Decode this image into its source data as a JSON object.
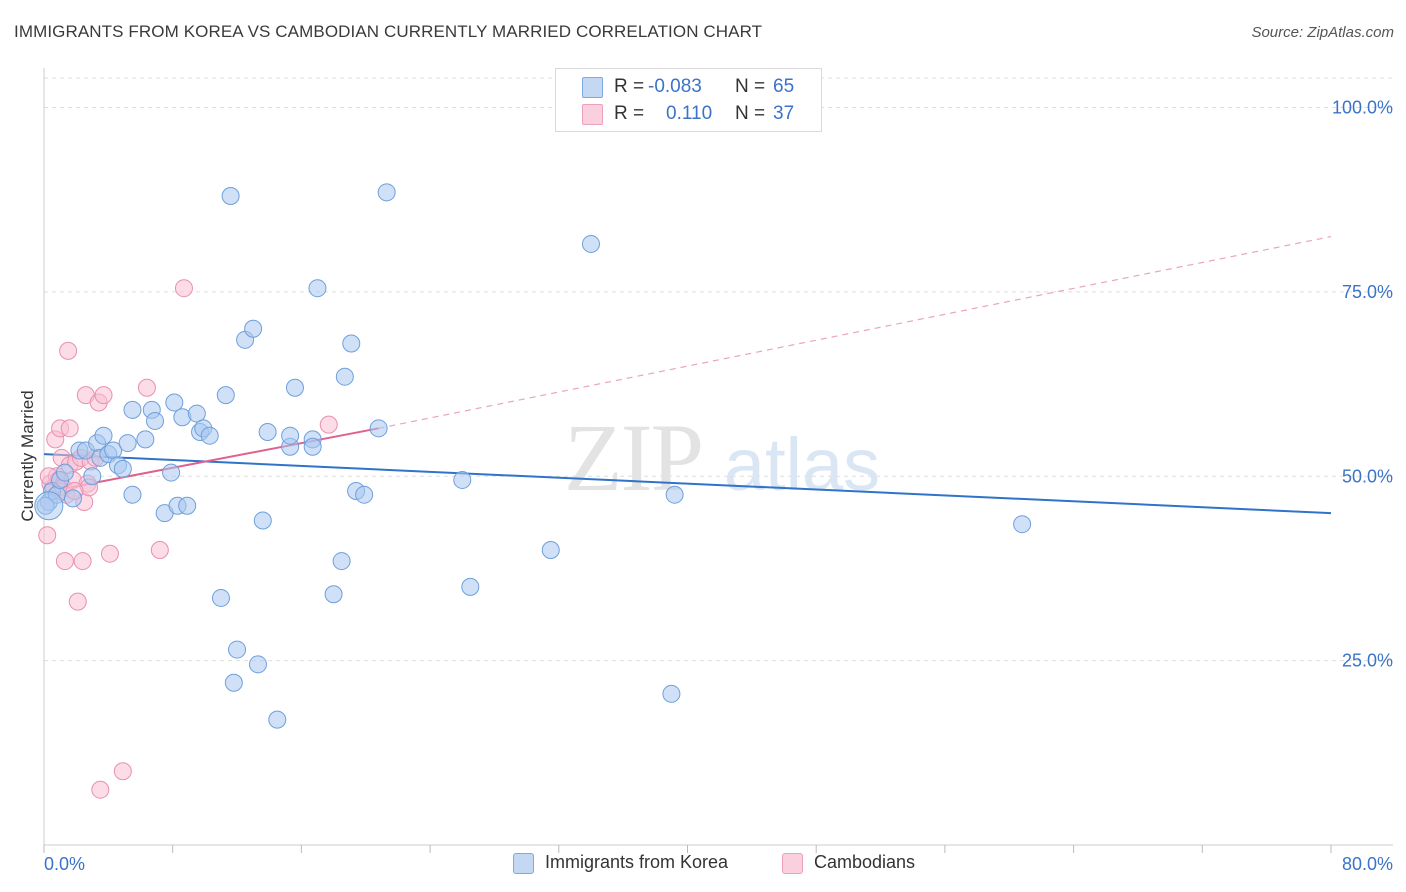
{
  "chart_data": {
    "type": "scatter",
    "title": "IMMIGRANTS FROM KOREA VS CAMBODIAN CURRENTLY MARRIED CORRELATION CHART",
    "source": "Source: ZipAtlas.com",
    "xlabel": "",
    "ylabel": "Currently Married",
    "xlim": [
      0,
      80
    ],
    "ylim": [
      0,
      104
    ],
    "x_tick_labels": {
      "min": "0.0%",
      "max": "80.0%"
    },
    "y_ticks": [
      {
        "value": 100,
        "label": "100.0%"
      },
      {
        "value": 75,
        "label": "75.0%"
      },
      {
        "value": 50,
        "label": "50.0%"
      },
      {
        "value": 25,
        "label": "25.0%"
      }
    ],
    "watermark": {
      "zip": "ZIP",
      "atlas": "atlas"
    },
    "legend_stats": [
      {
        "r_label": "R =",
        "r_value": "-0.083",
        "n_label": "N =",
        "n_value": "65"
      },
      {
        "r_label": "R =",
        "r_value": "0.110",
        "n_label": "N =",
        "n_value": "37"
      }
    ],
    "series": [
      {
        "name": "Immigrants from Korea",
        "color": "#aac8f0",
        "stroke": "#6e9fdc",
        "trend_color": "#2f74c8",
        "trend": {
          "x0": 0,
          "y0": 53.0,
          "x1": 80,
          "y1": 45.0
        },
        "points": [
          [
            0.3,
            46.5
          ],
          [
            0.5,
            48.0
          ],
          [
            0.8,
            47.5
          ],
          [
            1.0,
            49.5
          ],
          [
            1.3,
            50.5
          ],
          [
            1.8,
            47.0
          ],
          [
            2.2,
            53.5
          ],
          [
            2.6,
            53.5
          ],
          [
            3.0,
            50.0
          ],
          [
            3.3,
            54.5
          ],
          [
            3.5,
            52.5
          ],
          [
            3.7,
            55.5
          ],
          [
            4.0,
            53.0
          ],
          [
            4.3,
            53.5
          ],
          [
            4.6,
            51.5
          ],
          [
            4.9,
            51.0
          ],
          [
            5.2,
            54.5
          ],
          [
            5.5,
            47.5
          ],
          [
            5.5,
            59.0
          ],
          [
            6.3,
            55.0
          ],
          [
            6.7,
            59.0
          ],
          [
            6.9,
            57.5
          ],
          [
            7.5,
            45.0
          ],
          [
            7.9,
            50.5
          ],
          [
            8.1,
            60.0
          ],
          [
            8.3,
            46.0
          ],
          [
            8.6,
            58.0
          ],
          [
            8.9,
            46.0
          ],
          [
            9.5,
            58.5
          ],
          [
            9.7,
            56.0
          ],
          [
            9.9,
            56.5
          ],
          [
            10.3,
            55.5
          ],
          [
            11.0,
            33.5
          ],
          [
            11.3,
            61.0
          ],
          [
            11.6,
            88.0
          ],
          [
            11.8,
            22.0
          ],
          [
            12.0,
            26.5
          ],
          [
            12.5,
            68.5
          ],
          [
            13.0,
            70.0
          ],
          [
            13.3,
            24.5
          ],
          [
            13.6,
            44.0
          ],
          [
            13.9,
            56.0
          ],
          [
            14.5,
            17.0
          ],
          [
            15.3,
            54.0
          ],
          [
            15.3,
            55.5
          ],
          [
            15.6,
            62.0
          ],
          [
            16.7,
            55.0
          ],
          [
            16.7,
            54.0
          ],
          [
            17.0,
            75.5
          ],
          [
            18.0,
            34.0
          ],
          [
            18.5,
            38.5
          ],
          [
            18.7,
            63.5
          ],
          [
            19.1,
            68.0
          ],
          [
            19.4,
            48.0
          ],
          [
            19.9,
            47.5
          ],
          [
            20.8,
            56.5
          ],
          [
            21.3,
            88.5
          ],
          [
            26.0,
            49.5
          ],
          [
            26.5,
            35.0
          ],
          [
            31.5,
            40.0
          ],
          [
            34.0,
            81.5
          ],
          [
            39.0,
            20.5
          ],
          [
            39.2,
            47.5
          ],
          [
            60.8,
            43.5
          ],
          [
            0.1,
            46.0
          ]
        ]
      },
      {
        "name": "Cambodians",
        "color": "#f7bfd3",
        "stroke": "#e890b0",
        "trend_color": "#e0608e",
        "trend": {
          "x0": 0,
          "y0": 47.8,
          "x1": 20.8,
          "y1": 56.5
        },
        "trend_dashed": {
          "x0": 20.8,
          "y0": 56.5,
          "x1": 80,
          "y1": 82.5
        },
        "points": [
          [
            0.2,
            42.0
          ],
          [
            0.4,
            49.0
          ],
          [
            0.6,
            48.5
          ],
          [
            0.7,
            55.0
          ],
          [
            0.8,
            50.0
          ],
          [
            0.9,
            49.5
          ],
          [
            1.0,
            48.0
          ],
          [
            1.0,
            56.5
          ],
          [
            1.1,
            52.5
          ],
          [
            1.2,
            48.5
          ],
          [
            1.3,
            38.5
          ],
          [
            1.4,
            47.5
          ],
          [
            1.5,
            67.0
          ],
          [
            1.6,
            51.5
          ],
          [
            1.6,
            56.5
          ],
          [
            1.8,
            49.5
          ],
          [
            2.0,
            52.0
          ],
          [
            2.1,
            33.0
          ],
          [
            2.3,
            52.5
          ],
          [
            2.4,
            38.5
          ],
          [
            2.5,
            46.5
          ],
          [
            2.6,
            61.0
          ],
          [
            2.7,
            49.0
          ],
          [
            2.8,
            48.5
          ],
          [
            2.9,
            52.0
          ],
          [
            3.2,
            52.5
          ],
          [
            3.4,
            60.0
          ],
          [
            3.5,
            7.5
          ],
          [
            3.7,
            61.0
          ],
          [
            4.1,
            39.5
          ],
          [
            4.9,
            10.0
          ],
          [
            6.4,
            62.0
          ],
          [
            7.2,
            40.0
          ],
          [
            8.7,
            75.5
          ],
          [
            17.7,
            57.0
          ],
          [
            0.3,
            50.0
          ],
          [
            1.9,
            48.0
          ]
        ]
      }
    ]
  }
}
